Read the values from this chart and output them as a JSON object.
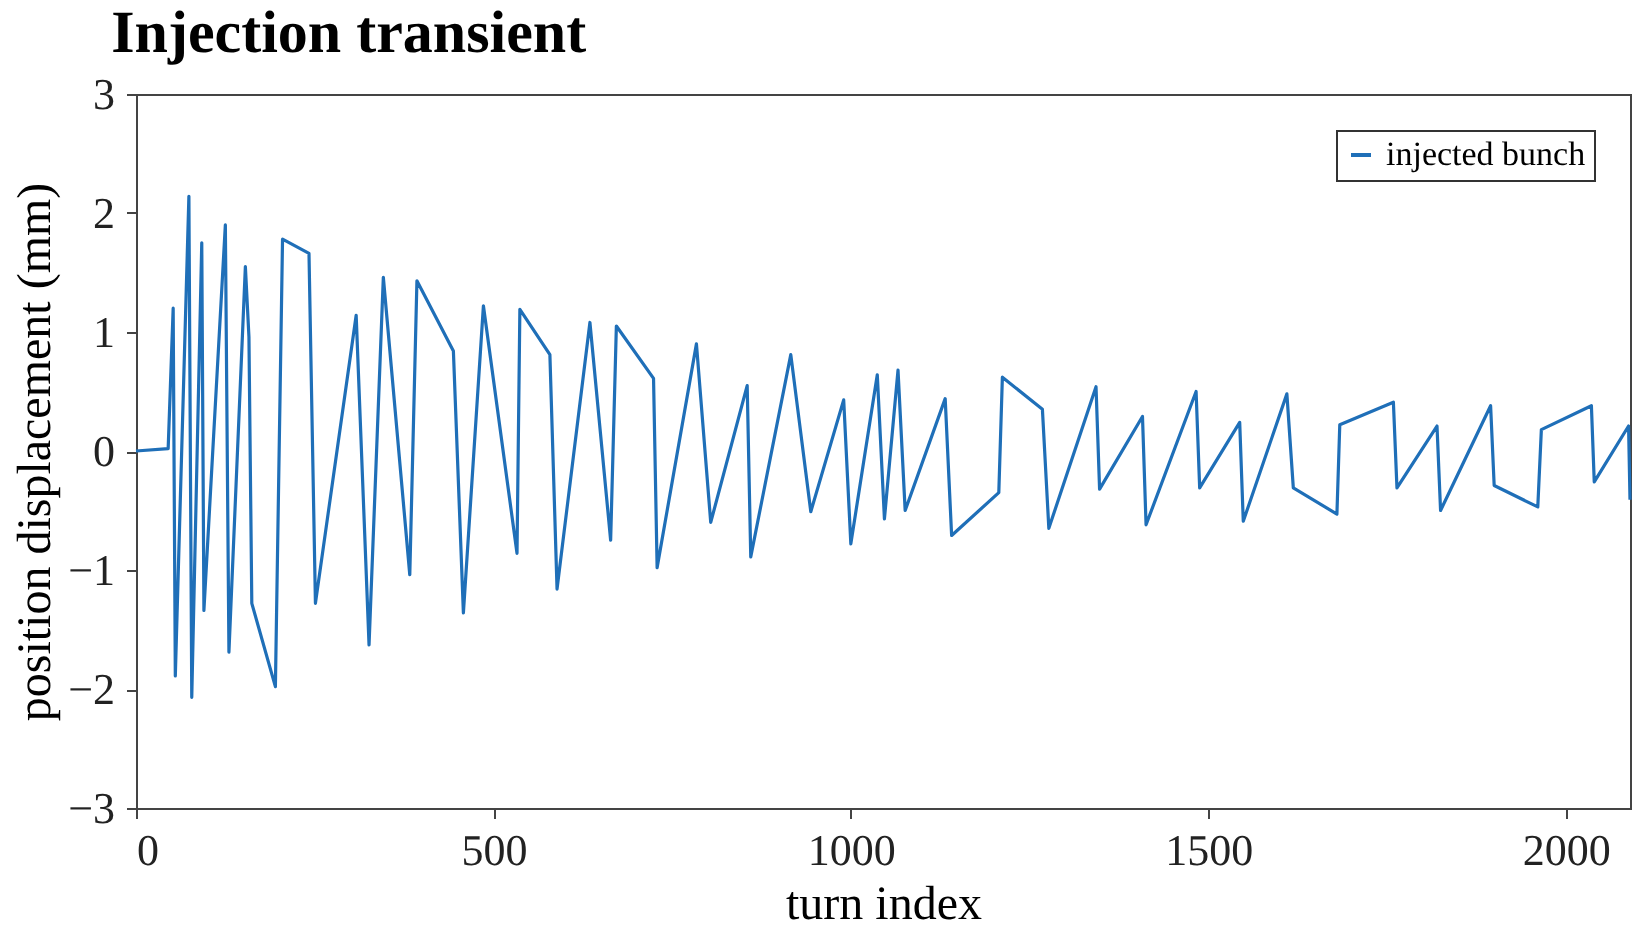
{
  "chart_data": {
    "type": "line",
    "title": "Injection transient",
    "xlabel": "turn index",
    "ylabel": "position displacement (mm)",
    "xlim": [
      0,
      2090
    ],
    "xticks": [
      0,
      500,
      1000,
      1500,
      2000
    ],
    "ylim": [
      -3,
      3
    ],
    "yticks": [
      -3,
      -2,
      -1,
      0,
      1,
      2,
      3
    ],
    "grid": false,
    "legend": "top right",
    "marker": "none",
    "line_style": "solid",
    "series": [
      {
        "name": "injected bunch",
        "color": "#1f6fb8",
        "x": [
          0,
          45,
          52,
          55,
          74,
          78,
          92,
          95,
          125,
          130,
          153,
          158,
          162,
          195,
          205,
          242,
          251,
          308,
          326,
          346,
          383,
          393,
          444,
          458,
          486,
          533,
          537,
          579,
          589,
          635,
          664,
          672,
          724,
          729,
          784,
          804,
          855,
          860,
          916,
          944,
          990,
          1000,
          1037,
          1047,
          1066,
          1076,
          1132,
          1141,
          1207,
          1212,
          1268,
          1277,
          1343,
          1348,
          1408,
          1413,
          1483,
          1488,
          1544,
          1549,
          1610,
          1619,
          1680,
          1684,
          1759,
          1764,
          1820,
          1825,
          1895,
          1900,
          1961,
          1966,
          2036,
          2040,
          2088,
          2090
        ],
        "values": [
          0,
          0.02,
          1.2,
          -1.89,
          2.14,
          -2.07,
          1.75,
          -1.34,
          1.9,
          -1.69,
          1.55,
          0.96,
          -1.28,
          -1.98,
          1.78,
          1.66,
          -1.28,
          1.14,
          -1.63,
          1.46,
          -1.04,
          1.43,
          0.84,
          -1.36,
          1.22,
          -0.86,
          1.19,
          0.81,
          -1.16,
          1.08,
          -0.75,
          1.05,
          0.61,
          -0.98,
          0.9,
          -0.6,
          0.55,
          -0.89,
          0.81,
          -0.51,
          0.43,
          -0.78,
          0.64,
          -0.57,
          0.68,
          -0.5,
          0.44,
          -0.71,
          -0.35,
          0.62,
          0.35,
          -0.65,
          0.54,
          -0.32,
          0.29,
          -0.62,
          0.5,
          -0.31,
          0.24,
          -0.59,
          0.48,
          -0.31,
          -0.53,
          0.22,
          0.41,
          -0.31,
          0.21,
          -0.5,
          0.38,
          -0.29,
          -0.47,
          0.18,
          0.38,
          -0.26,
          0.21,
          -0.41
        ]
      }
    ]
  }
}
